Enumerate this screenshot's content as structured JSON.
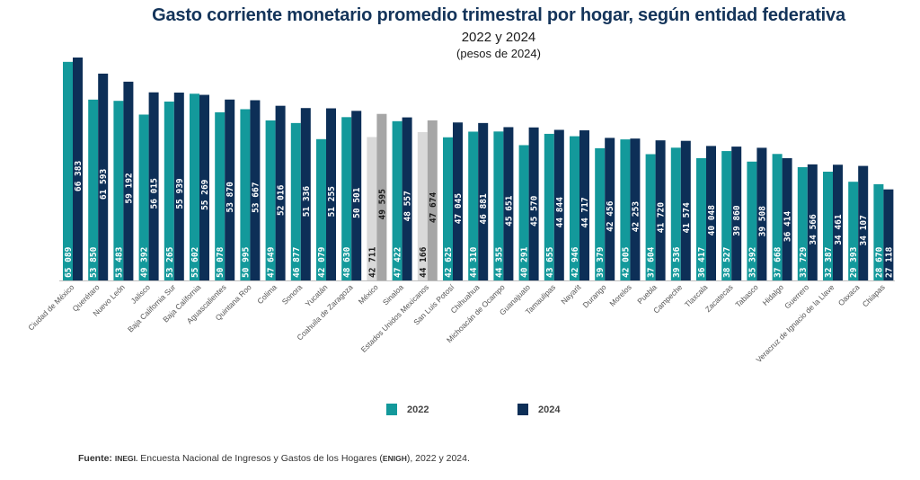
{
  "title": "Gasto corriente monetario promedio trimestral por hogar, según entidad federativa",
  "subtitle": "2022 y 2024",
  "unit": "(pesos de 2024)",
  "legend": [
    {
      "label": "2022",
      "color": "#13999b"
    },
    {
      "label": "2024",
      "color": "#0d2f57"
    }
  ],
  "highlight_colors": {
    "2022": "#d9d9d9",
    "2024": "#a6a6a6"
  },
  "source": {
    "prefix": "Fuente:",
    "org": "INEGI.",
    "text1": " Encuesta Nacional de Ingresos y Gastos de los Hogares (",
    "abbr": "ENIGH",
    "text2": "), 2022 y 2024."
  },
  "chart_data": {
    "type": "bar",
    "title": "Gasto corriente monetario promedio trimestral por hogar, según entidad federativa",
    "subtitle": "2022 y 2024 (pesos de 2024)",
    "xlabel": "",
    "ylabel": "",
    "ylim": [
      0,
      66383
    ],
    "grid": false,
    "legend_position": "bottom",
    "categories": [
      "Ciudad de México",
      "Querétaro",
      "Nuevo León",
      "Jalisco",
      "Baja California Sur",
      "Baja California",
      "Aguascalientes",
      "Quintana Roo",
      "Colima",
      "Sonora",
      "Yucatán",
      "Coahuila de Zaragoza",
      "México",
      "Sinaloa",
      "Estados Unidos Mexicanos",
      "San Luis Potosí",
      "Chihuahua",
      "Michoacán de Ocampo",
      "Guanajuato",
      "Tamaulipas",
      "Nayarit",
      "Durango",
      "Morelos",
      "Puebla",
      "Campeche",
      "Tlaxcala",
      "Zacatecas",
      "Tabasco",
      "Hidalgo",
      "Guerrero",
      "Veracruz de Ignacio de la Llave",
      "Oaxaca",
      "Chiapas"
    ],
    "highlighted": [
      "México",
      "Estados Unidos Mexicanos"
    ],
    "series": [
      {
        "name": "2022",
        "values": [
          65089,
          53850,
          53483,
          49392,
          53265,
          55602,
          50078,
          50995,
          47649,
          46877,
          42079,
          48630,
          42711,
          47422,
          44166,
          42625,
          44310,
          44355,
          40291,
          43655,
          42946,
          39379,
          42005,
          37604,
          39536,
          36417,
          38527,
          35392,
          37668,
          33729,
          32387,
          29393,
          28670
        ]
      },
      {
        "name": "2024",
        "values": [
          66383,
          61593,
          59192,
          56015,
          55939,
          55269,
          53870,
          53667,
          52016,
          51336,
          51255,
          50501,
          49595,
          48557,
          47674,
          47045,
          46881,
          45651,
          45570,
          44844,
          44717,
          42456,
          42253,
          41720,
          41574,
          40048,
          39860,
          39508,
          36414,
          34566,
          34461,
          34107,
          27118
        ]
      }
    ]
  }
}
